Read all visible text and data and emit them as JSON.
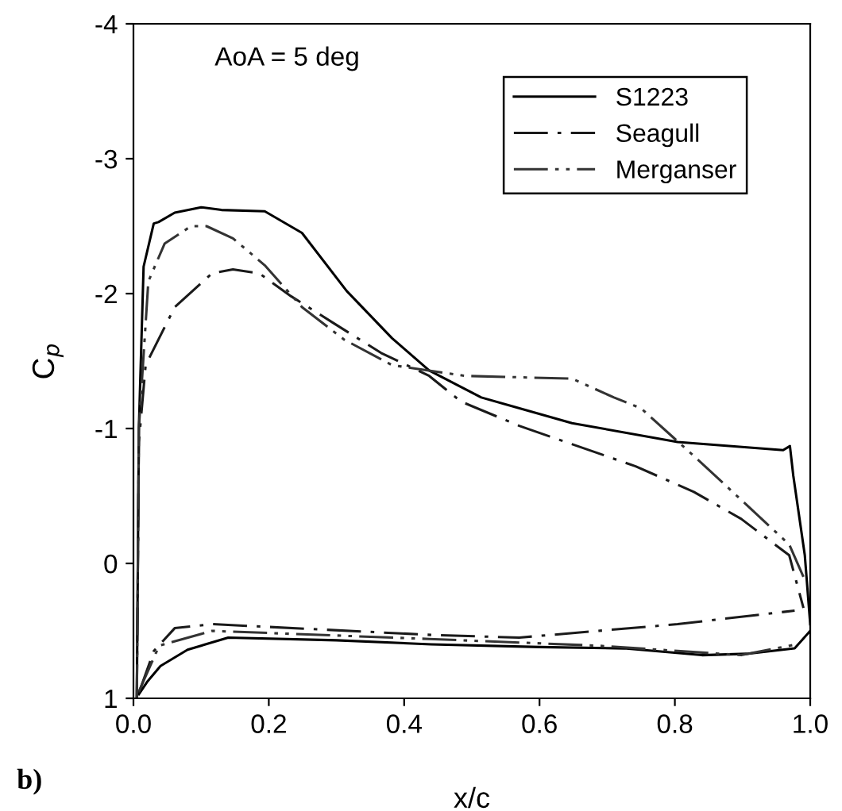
{
  "chart_data": {
    "type": "line",
    "xlabel": "x/c",
    "ylabel": "C$_{p}$",
    "annotations": [
      "AoA = 5 deg",
      "b)"
    ],
    "xlim": [
      0,
      1
    ],
    "ylim": [
      1,
      -4
    ],
    "xticks": [
      {
        "value": 0,
        "label": "0.0"
      },
      {
        "value": 0.2,
        "label": "0.2"
      },
      {
        "value": 0.4,
        "label": "0.4"
      },
      {
        "value": 0.6,
        "label": "0.6"
      },
      {
        "value": 0.8,
        "label": "0.8"
      },
      {
        "value": 1,
        "label": "1.0"
      }
    ],
    "yticks": [
      -4,
      -3,
      -2,
      -1,
      0,
      1
    ],
    "grid": false,
    "legend": "top right",
    "marker": "none",
    "series": [
      {
        "name": "S1223",
        "color": "#000000",
        "line_style": "solid",
        "x": [
          0.005,
          0.008,
          0.015,
          0.03,
          0.037,
          0.061,
          0.1,
          0.13,
          0.194,
          0.249,
          0.315,
          0.382,
          0.437,
          0.514,
          0.648,
          0.804,
          0.96,
          0.97,
          0.975,
          0.992,
          1.0
        ],
        "values": [
          1.0,
          -1.0,
          -2.2,
          -2.52,
          -2.53,
          -2.6,
          -2.64,
          -2.62,
          -2.61,
          -2.45,
          -2.02,
          -1.67,
          -1.43,
          -1.23,
          -1.04,
          -0.9,
          -0.84,
          -0.87,
          -0.65,
          -0.06,
          0.45
        ]
      },
      {
        "color": "#000000",
        "line_style": "solid",
        "x": [
          0.008,
          0.02,
          0.04,
          0.08,
          0.14,
          0.3,
          0.44,
          0.6,
          0.725,
          0.84,
          0.906,
          0.977,
          1.0
        ],
        "values": [
          0.97,
          0.88,
          0.76,
          0.64,
          0.55,
          0.57,
          0.6,
          0.62,
          0.63,
          0.68,
          0.67,
          0.63,
          0.5
        ]
      },
      {
        "name": "Seagull",
        "color": "#1a1a1a",
        "line_style": "dashdot",
        "x": [
          0.005,
          0.008,
          0.018,
          0.061,
          0.116,
          0.147,
          0.186,
          0.233,
          0.296,
          0.366,
          0.437,
          0.484,
          0.57,
          0.742,
          0.828,
          0.898,
          0.969,
          0.99
        ],
        "values": [
          1.0,
          -0.9,
          -1.47,
          -1.9,
          -2.15,
          -2.18,
          -2.15,
          -1.98,
          -1.78,
          -1.56,
          -1.39,
          -1.2,
          -1.02,
          -0.72,
          -0.53,
          -0.33,
          -0.06,
          0.33
        ]
      },
      {
        "color": "#1a1a1a",
        "line_style": "dashdot",
        "x": [
          0.008,
          0.03,
          0.061,
          0.116,
          0.44,
          0.57,
          0.804,
          0.977
        ],
        "values": [
          0.96,
          0.65,
          0.48,
          0.45,
          0.53,
          0.55,
          0.45,
          0.35
        ]
      },
      {
        "name": "Merganser",
        "color": "#333333",
        "line_style": "dashdotdot",
        "x": [
          0.005,
          0.008,
          0.022,
          0.046,
          0.085,
          0.108,
          0.147,
          0.194,
          0.249,
          0.311,
          0.382,
          0.49,
          0.648,
          0.71,
          0.75,
          0.836,
          0.969,
          0.99
        ],
        "values": [
          1.0,
          -1.0,
          -2.09,
          -2.37,
          -2.5,
          -2.5,
          -2.41,
          -2.21,
          -1.9,
          -1.66,
          -1.47,
          -1.39,
          -1.37,
          -1.23,
          -1.15,
          -0.76,
          -0.14,
          0.1
        ]
      },
      {
        "color": "#333333",
        "line_style": "dashdotdot",
        "x": [
          0.008,
          0.038,
          0.116,
          0.437,
          0.687,
          0.898,
          0.98
        ],
        "values": [
          0.95,
          0.61,
          0.5,
          0.56,
          0.61,
          0.68,
          0.6
        ]
      }
    ]
  }
}
